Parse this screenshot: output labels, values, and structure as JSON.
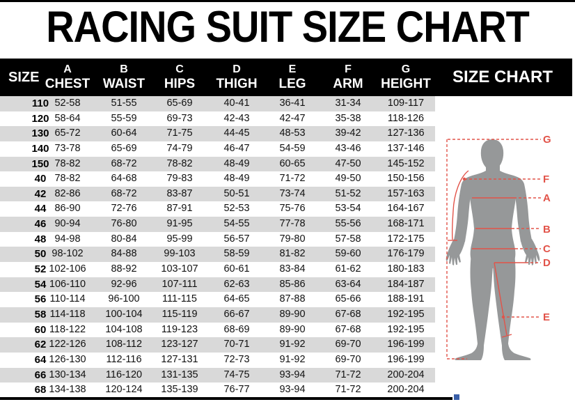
{
  "title": "RACING SUIT SIZE CHART",
  "table": {
    "size_header": "SIZE",
    "columns": [
      {
        "letter": "A",
        "name": "CHEST"
      },
      {
        "letter": "B",
        "name": "WAIST"
      },
      {
        "letter": "C",
        "name": "HIPS"
      },
      {
        "letter": "D",
        "name": "THIGH"
      },
      {
        "letter": "E",
        "name": "LEG"
      },
      {
        "letter": "F",
        "name": "ARM"
      },
      {
        "letter": "G",
        "name": "HEIGHT"
      }
    ],
    "rows": [
      [
        "110",
        "52-58",
        "51-55",
        "65-69",
        "40-41",
        "36-41",
        "31-34",
        "109-117"
      ],
      [
        "120",
        "58-64",
        "55-59",
        "69-73",
        "42-43",
        "42-47",
        "35-38",
        "118-126"
      ],
      [
        "130",
        "65-72",
        "60-64",
        "71-75",
        "44-45",
        "48-53",
        "39-42",
        "127-136"
      ],
      [
        "140",
        "73-78",
        "65-69",
        "74-79",
        "46-47",
        "54-59",
        "43-46",
        "137-146"
      ],
      [
        "150",
        "78-82",
        "68-72",
        "78-82",
        "48-49",
        "60-65",
        "47-50",
        "145-152"
      ],
      [
        "40",
        "78-82",
        "64-68",
        "79-83",
        "48-49",
        "71-72",
        "49-50",
        "150-156"
      ],
      [
        "42",
        "82-86",
        "68-72",
        "83-87",
        "50-51",
        "73-74",
        "51-52",
        "157-163"
      ],
      [
        "44",
        "86-90",
        "72-76",
        "87-91",
        "52-53",
        "75-76",
        "53-54",
        "164-167"
      ],
      [
        "46",
        "90-94",
        "76-80",
        "91-95",
        "54-55",
        "77-78",
        "55-56",
        "168-171"
      ],
      [
        "48",
        "94-98",
        "80-84",
        "95-99",
        "56-57",
        "79-80",
        "57-58",
        "172-175"
      ],
      [
        "50",
        "98-102",
        "84-88",
        "99-103",
        "58-59",
        "81-82",
        "59-60",
        "176-179"
      ],
      [
        "52",
        "102-106",
        "88-92",
        "103-107",
        "60-61",
        "83-84",
        "61-62",
        "180-183"
      ],
      [
        "54",
        "106-110",
        "92-96",
        "107-111",
        "62-63",
        "85-86",
        "63-64",
        "184-187"
      ],
      [
        "56",
        "110-114",
        "96-100",
        "111-115",
        "64-65",
        "87-88",
        "65-66",
        "188-191"
      ],
      [
        "58",
        "114-118",
        "100-104",
        "115-119",
        "66-67",
        "89-90",
        "67-68",
        "192-195"
      ],
      [
        "60",
        "118-122",
        "104-108",
        "119-123",
        "68-69",
        "89-90",
        "67-68",
        "192-195"
      ],
      [
        "62",
        "122-126",
        "108-112",
        "123-127",
        "70-71",
        "91-92",
        "69-70",
        "196-199"
      ],
      [
        "64",
        "126-130",
        "112-116",
        "127-131",
        "72-73",
        "91-92",
        "69-70",
        "196-199"
      ],
      [
        "66",
        "130-134",
        "116-120",
        "131-135",
        "74-75",
        "93-94",
        "71-72",
        "200-204"
      ],
      [
        "68",
        "134-138",
        "120-124",
        "135-139",
        "76-77",
        "93-94",
        "71-72",
        "200-204"
      ]
    ]
  },
  "side_panel": {
    "title": "SIZE CHART",
    "figure_labels": {
      "height": "G",
      "arm": "F",
      "chest": "A",
      "waist": "B",
      "hips": "C",
      "thigh": "D",
      "leg": "E"
    }
  },
  "colors": {
    "accent_red": "#e25349",
    "stripe_gray": "#d9d9d9",
    "header_black": "#000000",
    "silhouette_gray": "#969899",
    "handle_blue": "#3a5fa8"
  }
}
